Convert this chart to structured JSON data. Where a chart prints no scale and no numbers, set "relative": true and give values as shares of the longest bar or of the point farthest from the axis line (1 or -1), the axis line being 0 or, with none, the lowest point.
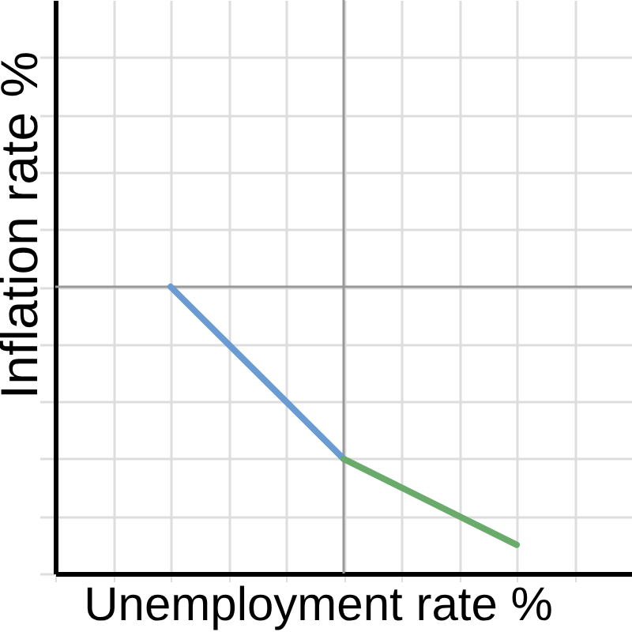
{
  "chart_data": {
    "type": "line",
    "xlabel": "Unemployment rate %",
    "ylabel": "Inflation rate %",
    "relative": true,
    "categories": [
      null,
      null,
      null,
      null,
      null,
      null,
      null,
      null,
      null,
      null
    ],
    "series": [
      {
        "color": "#6a9bd3",
        "values": [
          null,
          null,
          1,
          0.8,
          0.6,
          0.4,
          null,
          null,
          null,
          null
        ]
      },
      {
        "color": "#6aab6c",
        "values": [
          null,
          null,
          null,
          null,
          null,
          0.4,
          0.3,
          0.2,
          0.1,
          null
        ]
      }
    ],
    "ref_lines": [
      {
        "axis": "y",
        "value": 1,
        "color": "#999999"
      }
    ],
    "grid": true
  }
}
